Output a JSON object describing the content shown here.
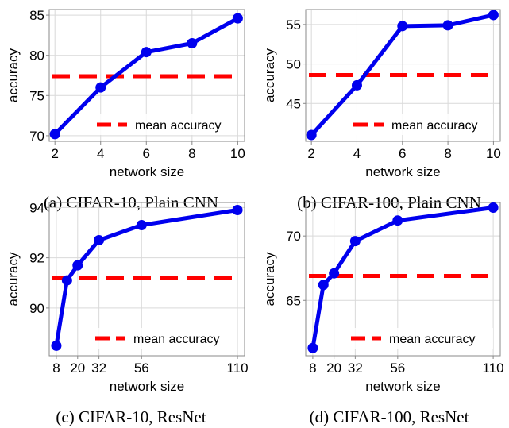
{
  "colors": {
    "series": "#0000ee",
    "mean": "#ff0000",
    "grid": "#d9d9d9"
  },
  "chart_data": [
    {
      "type": "line",
      "caption": "(a) CIFAR-10, Plain CNN",
      "xlabel": "network size",
      "ylabel": "accuracy",
      "x": [
        2,
        4,
        6,
        8,
        10
      ],
      "xticks": [
        2,
        4,
        6,
        8,
        10
      ],
      "xlim": [
        1.75,
        10.3
      ],
      "yticks": [
        70,
        75,
        80,
        85
      ],
      "ylim": [
        69.3,
        85.7
      ],
      "grid": true,
      "series": [
        {
          "values": [
            70.2,
            76.0,
            80.4,
            81.5,
            84.6
          ]
        }
      ],
      "mean_line": {
        "value": 77.4,
        "label": "mean accuracy"
      },
      "legend_position": "lower-right"
    },
    {
      "type": "line",
      "caption": "(b) CIFAR-100, Plain CNN",
      "xlabel": "network size",
      "ylabel": "accuracy",
      "x": [
        2,
        4,
        6,
        8,
        10
      ],
      "xticks": [
        2,
        4,
        6,
        8,
        10
      ],
      "xlim": [
        1.75,
        10.3
      ],
      "yticks": [
        45,
        50,
        55
      ],
      "ylim": [
        40.2,
        56.9
      ],
      "grid": true,
      "series": [
        {
          "values": [
            41.0,
            47.3,
            54.8,
            54.9,
            56.2
          ]
        }
      ],
      "mean_line": {
        "value": 48.6,
        "label": "mean accuracy"
      },
      "legend_position": "lower-right"
    },
    {
      "type": "line",
      "caption": "(c) CIFAR-10, ResNet",
      "xlabel": "network size",
      "ylabel": "accuracy",
      "x": [
        8,
        14,
        20,
        32,
        56,
        110
      ],
      "xticks": [
        8,
        20,
        32,
        56,
        110
      ],
      "xlim": [
        4,
        114
      ],
      "yticks": [
        90,
        92,
        94
      ],
      "ylim": [
        88.1,
        94.2
      ],
      "grid": true,
      "series": [
        {
          "values": [
            88.5,
            91.1,
            91.7,
            92.7,
            93.3,
            93.9
          ]
        }
      ],
      "mean_line": {
        "value": 91.2,
        "label": "mean accuracy"
      },
      "legend_position": "lower-right"
    },
    {
      "type": "line",
      "caption": "(d) CIFAR-100, ResNet",
      "xlabel": "network size",
      "ylabel": "accuracy",
      "x": [
        8,
        14,
        20,
        32,
        56,
        110
      ],
      "xticks": [
        8,
        20,
        32,
        56,
        110
      ],
      "xlim": [
        4,
        114
      ],
      "yticks": [
        65,
        70
      ],
      "ylim": [
        60.7,
        72.6
      ],
      "grid": true,
      "series": [
        {
          "values": [
            61.3,
            66.2,
            67.1,
            69.6,
            71.2,
            72.2
          ]
        }
      ],
      "mean_line": {
        "value": 66.9,
        "label": "mean accuracy"
      },
      "legend_position": "lower-right"
    }
  ]
}
